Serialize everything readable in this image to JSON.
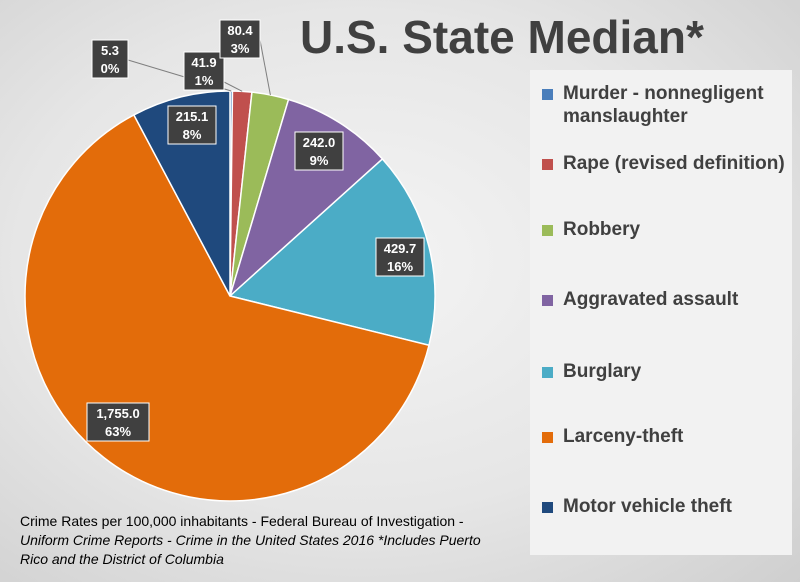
{
  "chart_data": {
    "type": "pie",
    "title": "U.S. State Median*",
    "categories": [
      "Murder - nonnegligent manslaughter",
      "Rape (revised definition)",
      "Robbery",
      "Aggravated assault",
      "Burglary",
      "Larceny-theft",
      "Motor vehicle theft"
    ],
    "values": [
      5.3,
      41.9,
      80.4,
      242.0,
      429.7,
      1755.0,
      215.1
    ],
    "value_labels": [
      "5.3",
      "41.9",
      "80.4",
      "242.0",
      "429.7",
      "1,755.0",
      "215.1"
    ],
    "percent_labels": [
      "0%",
      "1%",
      "3%",
      "9%",
      "16%",
      "63%",
      "8%"
    ],
    "colors": [
      "#4a7ebb",
      "#c0504d",
      "#9bbb59",
      "#8064a2",
      "#4bacc6",
      "#e36c0a",
      "#1f497d"
    ],
    "legend_placement": "right"
  },
  "footnote": {
    "part1": "Crime Rates per 100,000 inhabitants - Federal Bureau of Investigation - ",
    "part2": "Uniform Crime Reports - Crime in the United States 2016 *Includes Puerto Rico and the District of Columbia"
  }
}
